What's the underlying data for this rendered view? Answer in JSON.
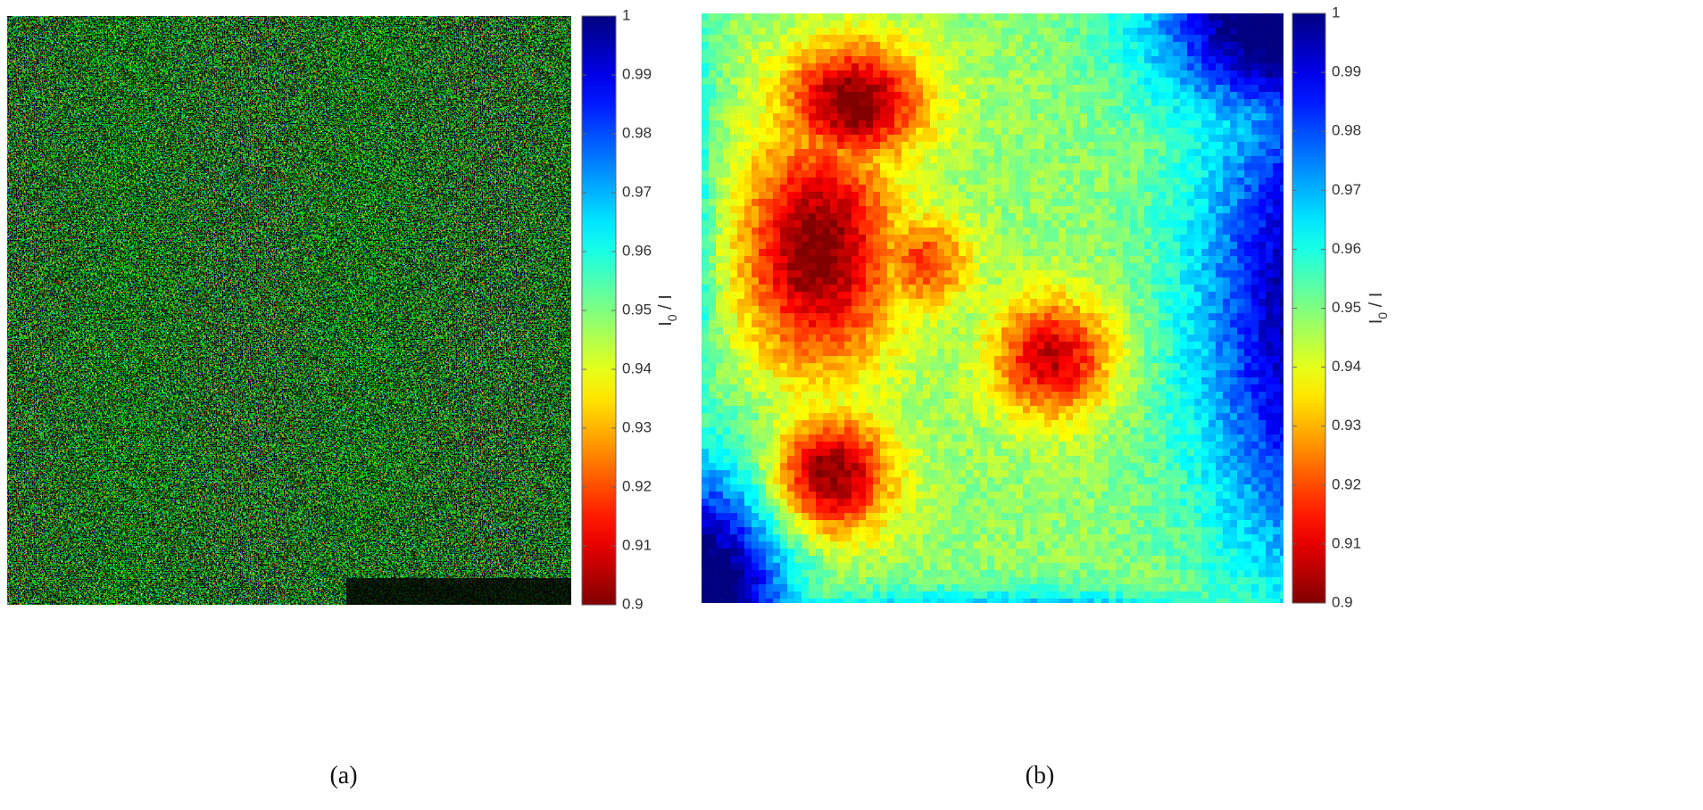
{
  "chart_data": [
    {
      "type": "heatmap",
      "panel_label": "(a)",
      "pattern": "speckle",
      "colormap": "jet",
      "clim": [
        0.9,
        1
      ],
      "cticks": [
        0.9,
        0.91,
        0.92,
        0.93,
        0.94,
        0.95,
        0.96,
        0.97,
        0.98,
        0.99,
        1
      ],
      "colorbar_label": {
        "base": "I",
        "subscript": "0",
        "rest": " / I"
      }
    },
    {
      "type": "heatmap",
      "panel_label": "(b)",
      "pattern": "field",
      "colormap": "jet",
      "clim": [
        0.9,
        1
      ],
      "cticks": [
        0.9,
        0.91,
        0.92,
        0.93,
        0.94,
        0.95,
        0.96,
        0.97,
        0.98,
        0.99,
        1
      ],
      "colorbar_label": {
        "base": "I",
        "subscript": "0",
        "rest": " / I"
      }
    }
  ]
}
